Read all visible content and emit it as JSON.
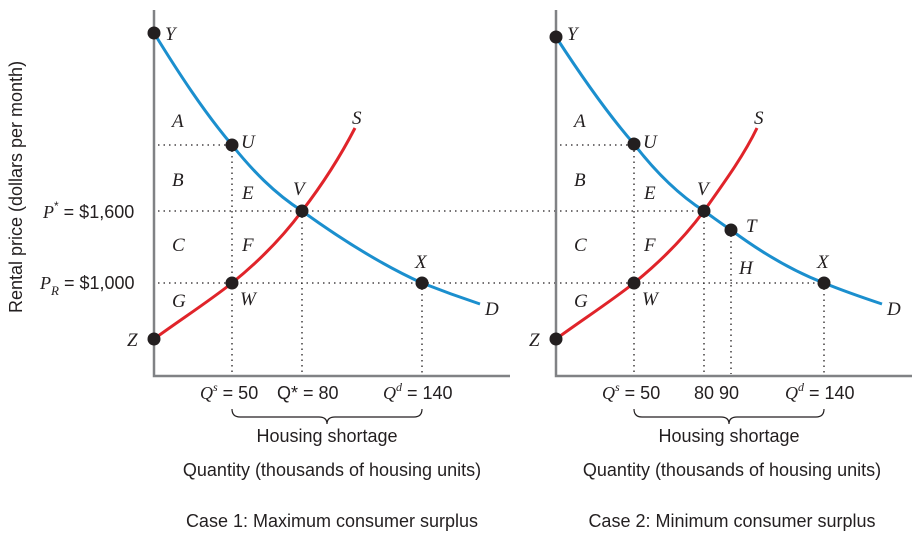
{
  "y_axis_label": "Rental price (dollars per month)",
  "price_labels": {
    "p_star_letter": "P",
    "p_star_sup": "*",
    "p_star_value": " = $1,600",
    "p_r_letter": "P",
    "p_r_sub": "R",
    "p_r_value": " = $1,000"
  },
  "panels": [
    {
      "caption": "Case 1: Maximum consumer surplus",
      "x_axis_label": "Quantity (thousands of housing units)",
      "shortage_label": "Housing shortage",
      "curve_labels": {
        "supply": "S",
        "demand": "D"
      },
      "point_labels": {
        "Y": "Y",
        "U": "U",
        "V": "V",
        "X": "X",
        "W": "W",
        "Z": "Z"
      },
      "region_labels": {
        "A": "A",
        "B": "B",
        "C": "C",
        "E": "E",
        "F": "F",
        "G": "G"
      },
      "tick_labels": {
        "qs_letter": "Q",
        "qs_sup": "s",
        "qs_value": " = 50",
        "qstar_text": "Q* = 80",
        "qd_letter": "Q",
        "qd_sup": "d",
        "qd_value": " = 140"
      }
    },
    {
      "caption": "Case 2: Minimum consumer surplus",
      "x_axis_label": "Quantity (thousands of housing units)",
      "shortage_label": "Housing shortage",
      "curve_labels": {
        "supply": "S",
        "demand": "D"
      },
      "point_labels": {
        "Y": "Y",
        "U": "U",
        "V": "V",
        "T": "T",
        "X": "X",
        "W": "W",
        "Z": "Z"
      },
      "region_labels": {
        "A": "A",
        "B": "B",
        "C": "C",
        "E": "E",
        "F": "F",
        "G": "G",
        "H": "H"
      },
      "tick_labels": {
        "qs_letter": "Q",
        "qs_sup": "s",
        "qs_value": " = 50",
        "t80": "80",
        "t90": "90",
        "qd_letter": "Q",
        "qd_sup": "d",
        "qd_value": " = 140"
      }
    }
  ],
  "colors": {
    "demand": "#1b8fce",
    "supply": "#e0242a",
    "axis": "#808285",
    "text": "#231f20"
  }
}
